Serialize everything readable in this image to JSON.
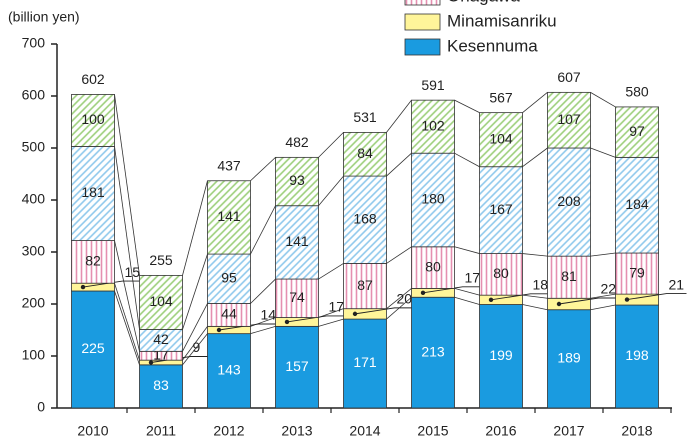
{
  "chart_data": {
    "type": "stacked_bar",
    "ylabel": "(billion yen)",
    "categories": [
      "2010",
      "2011",
      "2012",
      "2013",
      "2014",
      "2015",
      "2016",
      "2017",
      "2018"
    ],
    "series": [
      {
        "name": "Kesennuma",
        "color": "#1a9be0",
        "hatch": "none",
        "values": [
          225,
          83,
          143,
          157,
          171,
          213,
          199,
          189,
          198
        ]
      },
      {
        "name": "Minamisanriku",
        "color": "#fff59a",
        "hatch": "none",
        "values": [
          15,
          9,
          14,
          17,
          20,
          17,
          18,
          22,
          21
        ]
      },
      {
        "name": "Onagawa",
        "color": "#e58fb0",
        "hatch": "vertical",
        "values": [
          82,
          17,
          44,
          74,
          87,
          80,
          80,
          81,
          79
        ]
      },
      {
        "color": "#8ec8ec",
        "hatch": "diagonal",
        "values": [
          181,
          42,
          95,
          141,
          168,
          180,
          167,
          208,
          184
        ]
      },
      {
        "color": "#9ccf7a",
        "hatch": "diagonal",
        "values": [
          100,
          104,
          141,
          93,
          84,
          102,
          104,
          107,
          97
        ]
      }
    ],
    "totals": [
      602,
      255,
      437,
      482,
      531,
      591,
      567,
      607,
      580
    ],
    "ylim": [
      0,
      700
    ],
    "yticks": [
      0,
      100,
      200,
      300,
      400,
      500,
      600,
      700
    ],
    "legend": "top-right"
  }
}
